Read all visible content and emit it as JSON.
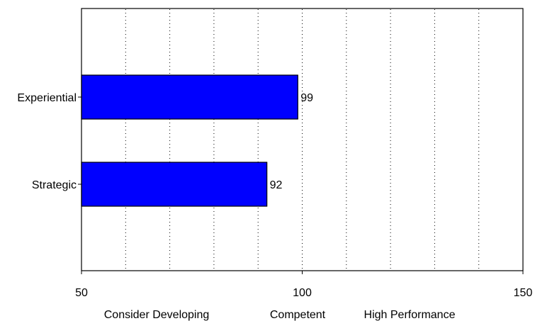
{
  "chart_data": {
    "type": "bar",
    "orientation": "horizontal",
    "categories": [
      "Experiential",
      "Strategic"
    ],
    "values": [
      99,
      92
    ],
    "data_labels": [
      "99",
      "92"
    ],
    "xlim": [
      50,
      150
    ],
    "x_tick_labels": [
      "50",
      "100",
      "150"
    ],
    "x_gridlines": [
      60,
      70,
      80,
      90,
      100,
      110,
      120,
      130,
      140
    ],
    "grid": "vertical dotted",
    "band_labels": [
      "Consider Developing",
      "Competent",
      "High Performance"
    ],
    "bar_color": "#0000ff",
    "bar_outline_color": "#000000",
    "title": "",
    "xlabel": "",
    "ylabel": ""
  }
}
